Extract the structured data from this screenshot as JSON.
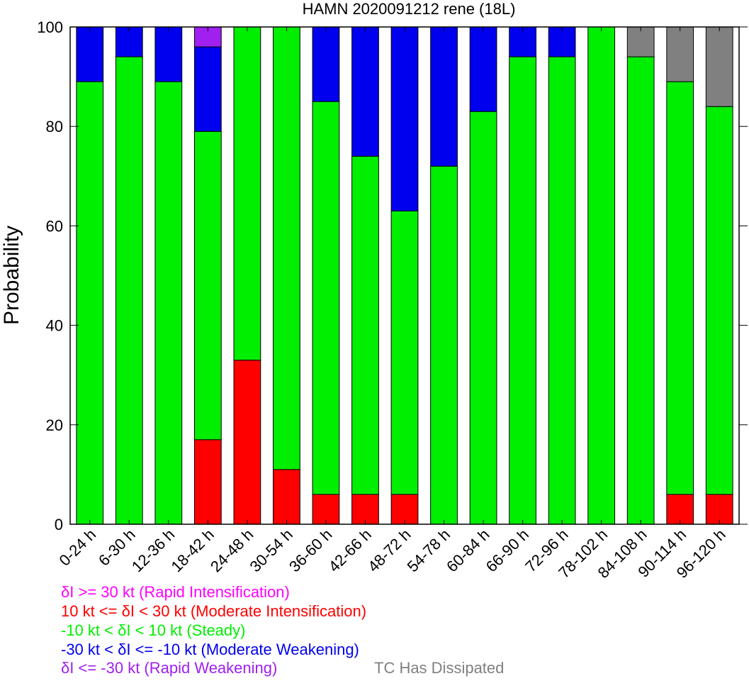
{
  "chart_data": {
    "type": "bar",
    "stacked": true,
    "title": "HAMN 2020091212 rene (18L)",
    "xlabel": "",
    "ylabel": "Probability",
    "ylim": [
      0,
      100
    ],
    "yticks": [
      0,
      20,
      40,
      60,
      80,
      100
    ],
    "grid": false,
    "categories": [
      "0-24 h",
      "6-30 h",
      "12-36 h",
      "18-42 h",
      "24-48 h",
      "30-54 h",
      "36-60 h",
      "42-66 h",
      "48-72 h",
      "54-78 h",
      "60-84 h",
      "66-90 h",
      "72-96 h",
      "78-102 h",
      "84-108 h",
      "90-114 h",
      "96-120 h"
    ],
    "series": [
      {
        "name": "δI >= 30 kt (Rapid Intensification)",
        "color": "#ff00ff",
        "values": [
          0,
          0,
          0,
          0,
          0,
          0,
          0,
          0,
          0,
          0,
          0,
          0,
          0,
          0,
          0,
          0,
          0
        ]
      },
      {
        "name": "10 kt <= δI < 30 kt (Moderate Intensification)",
        "color": "#ff0000",
        "values": [
          0,
          0,
          0,
          17,
          33,
          11,
          6,
          6,
          6,
          0,
          0,
          0,
          0,
          0,
          0,
          6,
          6
        ]
      },
      {
        "name": "-10 kt < δI < 10 kt (Steady)",
        "color": "#00ee00",
        "values": [
          89,
          94,
          89,
          62,
          67,
          89,
          79,
          68,
          57,
          72,
          83,
          94,
          94,
          100,
          94,
          83,
          78
        ]
      },
      {
        "name": "-30 kt < δI <= -10 kt (Moderate Weakening)",
        "color": "#0000ee",
        "values": [
          11,
          6,
          11,
          17,
          0,
          0,
          15,
          26,
          37,
          28,
          17,
          6,
          6,
          0,
          0,
          0,
          0
        ]
      },
      {
        "name": "δI <= -30 kt (Rapid Weakening)",
        "color": "#a020f0",
        "values": [
          0,
          0,
          0,
          4,
          0,
          0,
          0,
          0,
          0,
          0,
          0,
          0,
          0,
          0,
          0,
          0,
          0
        ]
      },
      {
        "name": "TC Has Dissipated",
        "color": "#808080",
        "values": [
          0,
          0,
          0,
          0,
          0,
          0,
          0,
          0,
          0,
          0,
          0,
          0,
          0,
          0,
          6,
          11,
          16
        ]
      }
    ]
  }
}
